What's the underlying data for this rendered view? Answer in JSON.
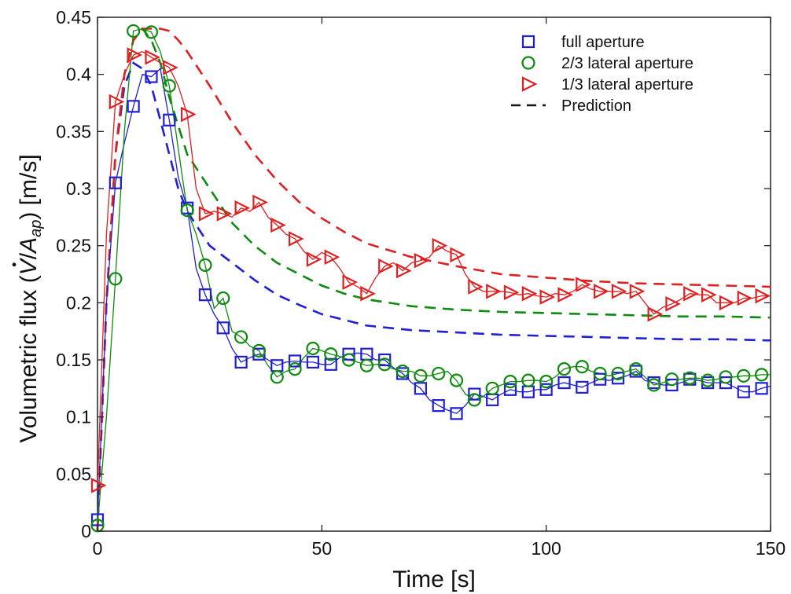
{
  "chart_data": {
    "type": "line",
    "xlabel": "Time [s]",
    "ylabel_prefix": "Volumetric flux (",
    "ylabel_dot_var": "V",
    "ylabel_div": "/",
    "ylabel_A": "A",
    "ylabel_sub": "ap",
    "ylabel_suffix": ") [m/s]",
    "xlim": [
      0,
      150
    ],
    "ylim": [
      0,
      0.45
    ],
    "xticks": [
      0,
      50,
      100,
      150
    ],
    "xtick_labels": [
      "0",
      "50",
      "100",
      "150"
    ],
    "yticks": [
      0,
      0.05,
      0.1,
      0.15,
      0.2,
      0.25,
      0.3,
      0.35,
      0.4,
      0.45
    ],
    "ytick_labels": [
      "0",
      "0.05",
      "0.1",
      "0.15",
      "0.2",
      "0.25",
      "0.3",
      "0.35",
      "0.4",
      "0.45"
    ],
    "legend_position": "top-right",
    "legend": [
      {
        "label": "full aperture",
        "marker": "square",
        "color": "#1f1fd6"
      },
      {
        "label": "2/3 lateral aperture",
        "marker": "circle",
        "color": "#0e8a0e"
      },
      {
        "label": "1/3 lateral aperture",
        "marker": "triangle-right",
        "color": "#e02020"
      },
      {
        "label": "Prediction",
        "marker": "dash",
        "color": "#111111"
      }
    ],
    "series": [
      {
        "color": "#1f1fd6",
        "marker": "square",
        "measured": {
          "x": [
            0,
            2,
            4,
            6,
            8,
            10,
            12,
            14,
            16,
            18,
            20,
            22,
            24,
            26,
            28,
            30,
            32,
            34,
            36,
            38,
            40,
            42,
            44,
            46,
            48,
            50,
            52,
            54,
            56,
            58,
            60,
            62,
            64,
            66,
            68,
            70,
            72,
            74,
            76,
            78,
            80,
            82,
            84,
            86,
            88,
            90,
            92,
            94,
            96,
            98,
            100,
            102,
            104,
            106,
            108,
            110,
            112,
            114,
            116,
            118,
            120,
            122,
            124,
            126,
            128,
            130,
            132,
            134,
            136,
            138,
            140,
            142,
            144,
            146,
            148,
            150
          ],
          "y": [
            0.01,
            0.2,
            0.305,
            0.34,
            0.372,
            0.4,
            0.398,
            0.405,
            0.36,
            0.31,
            0.283,
            0.23,
            0.207,
            0.19,
            0.178,
            0.16,
            0.148,
            0.152,
            0.155,
            0.15,
            0.145,
            0.148,
            0.149,
            0.148,
            0.148,
            0.146,
            0.146,
            0.152,
            0.155,
            0.156,
            0.155,
            0.15,
            0.15,
            0.143,
            0.138,
            0.13,
            0.125,
            0.115,
            0.11,
            0.106,
            0.103,
            0.11,
            0.12,
            0.118,
            0.115,
            0.12,
            0.124,
            0.122,
            0.122,
            0.124,
            0.124,
            0.128,
            0.13,
            0.128,
            0.126,
            0.13,
            0.133,
            0.132,
            0.134,
            0.136,
            0.14,
            0.132,
            0.13,
            0.128,
            0.128,
            0.13,
            0.133,
            0.132,
            0.13,
            0.13,
            0.13,
            0.126,
            0.122,
            0.122,
            0.125,
            0.127
          ]
        },
        "marker_x": [
          0,
          4,
          8,
          12,
          16,
          20,
          24,
          28,
          32,
          36,
          40,
          44,
          48,
          52,
          56,
          60,
          64,
          68,
          72,
          76,
          80,
          84,
          88,
          92,
          96,
          100,
          104,
          108,
          112,
          116,
          120,
          124,
          128,
          132,
          136,
          140,
          144,
          148
        ],
        "marker_y": [
          0.01,
          0.305,
          0.372,
          0.398,
          0.36,
          0.283,
          0.207,
          0.178,
          0.148,
          0.155,
          0.145,
          0.149,
          0.148,
          0.146,
          0.155,
          0.155,
          0.15,
          0.138,
          0.125,
          0.11,
          0.103,
          0.12,
          0.115,
          0.124,
          0.122,
          0.124,
          0.13,
          0.126,
          0.133,
          0.134,
          0.14,
          0.13,
          0.128,
          0.133,
          0.13,
          0.13,
          0.122,
          0.125
        ],
        "prediction": {
          "x": [
            0,
            2,
            4,
            6,
            8,
            10,
            12,
            14,
            16,
            18,
            20,
            25,
            30,
            35,
            40,
            45,
            50,
            55,
            60,
            70,
            80,
            90,
            100,
            110,
            120,
            130,
            140,
            150
          ],
          "y": [
            0,
            0.2,
            0.33,
            0.39,
            0.41,
            0.405,
            0.39,
            0.36,
            0.33,
            0.3,
            0.28,
            0.25,
            0.235,
            0.22,
            0.207,
            0.198,
            0.19,
            0.185,
            0.18,
            0.176,
            0.174,
            0.172,
            0.171,
            0.17,
            0.169,
            0.168,
            0.168,
            0.167
          ]
        }
      },
      {
        "color": "#0e8a0e",
        "marker": "circle",
        "measured": {
          "x": [
            0,
            2,
            4,
            6,
            8,
            10,
            12,
            14,
            16,
            18,
            20,
            22,
            24,
            26,
            28,
            30,
            32,
            34,
            36,
            38,
            40,
            42,
            44,
            46,
            48,
            50,
            52,
            54,
            56,
            58,
            60,
            62,
            64,
            66,
            68,
            70,
            72,
            74,
            76,
            78,
            80,
            82,
            84,
            86,
            88,
            90,
            92,
            94,
            96,
            98,
            100,
            102,
            104,
            106,
            108,
            110,
            112,
            114,
            116,
            118,
            120,
            122,
            124,
            126,
            128,
            130,
            132,
            134,
            136,
            138,
            140,
            142,
            144,
            146,
            148,
            150
          ],
          "y": [
            0.005,
            0.1,
            0.221,
            0.35,
            0.438,
            0.44,
            0.437,
            0.42,
            0.39,
            0.335,
            0.281,
            0.26,
            0.233,
            0.195,
            0.204,
            0.175,
            0.17,
            0.162,
            0.158,
            0.145,
            0.135,
            0.14,
            0.142,
            0.152,
            0.16,
            0.158,
            0.155,
            0.153,
            0.15,
            0.148,
            0.145,
            0.146,
            0.146,
            0.142,
            0.14,
            0.14,
            0.136,
            0.136,
            0.138,
            0.14,
            0.132,
            0.12,
            0.115,
            0.118,
            0.125,
            0.128,
            0.131,
            0.131,
            0.132,
            0.132,
            0.131,
            0.135,
            0.142,
            0.144,
            0.144,
            0.14,
            0.138,
            0.136,
            0.138,
            0.14,
            0.142,
            0.135,
            0.128,
            0.13,
            0.133,
            0.133,
            0.134,
            0.134,
            0.132,
            0.133,
            0.135,
            0.135,
            0.136,
            0.136,
            0.137,
            0.137
          ]
        },
        "marker_x": [
          0,
          4,
          8,
          12,
          16,
          20,
          24,
          28,
          32,
          36,
          40,
          44,
          48,
          52,
          56,
          60,
          64,
          68,
          72,
          76,
          80,
          84,
          88,
          92,
          96,
          100,
          104,
          108,
          112,
          116,
          120,
          124,
          128,
          132,
          136,
          140,
          144,
          148
        ],
        "marker_y": [
          0.005,
          0.221,
          0.438,
          0.437,
          0.39,
          0.281,
          0.233,
          0.204,
          0.17,
          0.158,
          0.135,
          0.142,
          0.16,
          0.155,
          0.15,
          0.145,
          0.146,
          0.14,
          0.136,
          0.138,
          0.132,
          0.115,
          0.125,
          0.131,
          0.132,
          0.131,
          0.142,
          0.144,
          0.138,
          0.138,
          0.142,
          0.128,
          0.133,
          0.134,
          0.132,
          0.135,
          0.136,
          0.137
        ],
        "prediction": {
          "x": [
            0,
            2,
            4,
            6,
            8,
            10,
            12,
            14,
            16,
            18,
            20,
            25,
            30,
            35,
            40,
            45,
            50,
            55,
            60,
            70,
            80,
            90,
            100,
            110,
            120,
            130,
            140,
            150
          ],
          "y": [
            0,
            0.2,
            0.33,
            0.4,
            0.43,
            0.44,
            0.43,
            0.41,
            0.38,
            0.355,
            0.33,
            0.3,
            0.27,
            0.25,
            0.235,
            0.225,
            0.215,
            0.208,
            0.203,
            0.197,
            0.194,
            0.192,
            0.191,
            0.19,
            0.189,
            0.188,
            0.188,
            0.187
          ]
        }
      },
      {
        "color": "#e02020",
        "marker": "triangle-right",
        "measured": {
          "x": [
            0,
            2,
            4,
            6,
            8,
            10,
            12,
            14,
            16,
            18,
            20,
            22,
            24,
            26,
            28,
            30,
            32,
            34,
            36,
            38,
            40,
            42,
            44,
            46,
            48,
            50,
            52,
            54,
            56,
            58,
            60,
            62,
            64,
            66,
            68,
            70,
            72,
            74,
            76,
            78,
            80,
            82,
            84,
            86,
            88,
            90,
            92,
            94,
            96,
            98,
            100,
            102,
            104,
            106,
            108,
            110,
            112,
            114,
            116,
            118,
            120,
            122,
            124,
            126,
            128,
            130,
            132,
            134,
            136,
            138,
            140,
            142,
            144,
            146,
            148,
            150
          ],
          "y": [
            0.04,
            0.26,
            0.376,
            0.4,
            0.417,
            0.42,
            0.415,
            0.41,
            0.406,
            0.39,
            0.365,
            0.3,
            0.278,
            0.28,
            0.278,
            0.275,
            0.283,
            0.28,
            0.288,
            0.275,
            0.268,
            0.26,
            0.256,
            0.245,
            0.238,
            0.244,
            0.24,
            0.23,
            0.218,
            0.214,
            0.208,
            0.222,
            0.232,
            0.235,
            0.228,
            0.235,
            0.237,
            0.24,
            0.25,
            0.245,
            0.242,
            0.225,
            0.214,
            0.21,
            0.21,
            0.21,
            0.209,
            0.207,
            0.208,
            0.206,
            0.205,
            0.208,
            0.207,
            0.21,
            0.216,
            0.212,
            0.21,
            0.21,
            0.21,
            0.208,
            0.21,
            0.2,
            0.19,
            0.196,
            0.199,
            0.203,
            0.208,
            0.207,
            0.207,
            0.2,
            0.2,
            0.2,
            0.204,
            0.204,
            0.206,
            0.206
          ]
        },
        "marker_x": [
          0,
          4,
          8,
          12,
          16,
          20,
          24,
          28,
          32,
          36,
          40,
          44,
          48,
          52,
          56,
          60,
          64,
          68,
          72,
          76,
          80,
          84,
          88,
          92,
          96,
          100,
          104,
          108,
          112,
          116,
          120,
          124,
          128,
          132,
          136,
          140,
          144,
          148
        ],
        "marker_y": [
          0.04,
          0.376,
          0.417,
          0.415,
          0.406,
          0.365,
          0.278,
          0.278,
          0.283,
          0.288,
          0.268,
          0.256,
          0.238,
          0.24,
          0.218,
          0.208,
          0.232,
          0.228,
          0.237,
          0.25,
          0.242,
          0.214,
          0.21,
          0.209,
          0.208,
          0.205,
          0.207,
          0.216,
          0.21,
          0.21,
          0.21,
          0.19,
          0.199,
          0.208,
          0.207,
          0.2,
          0.204,
          0.206
        ],
        "prediction": {
          "x": [
            0,
            2,
            4,
            6,
            8,
            10,
            12,
            14,
            16,
            18,
            20,
            25,
            30,
            35,
            40,
            45,
            50,
            55,
            60,
            70,
            80,
            90,
            100,
            110,
            120,
            130,
            140,
            150
          ],
          "y": [
            0,
            0.2,
            0.33,
            0.4,
            0.43,
            0.44,
            0.44,
            0.44,
            0.438,
            0.43,
            0.42,
            0.39,
            0.358,
            0.33,
            0.307,
            0.288,
            0.274,
            0.262,
            0.252,
            0.24,
            0.232,
            0.225,
            0.222,
            0.219,
            0.217,
            0.216,
            0.215,
            0.214
          ]
        }
      }
    ]
  }
}
